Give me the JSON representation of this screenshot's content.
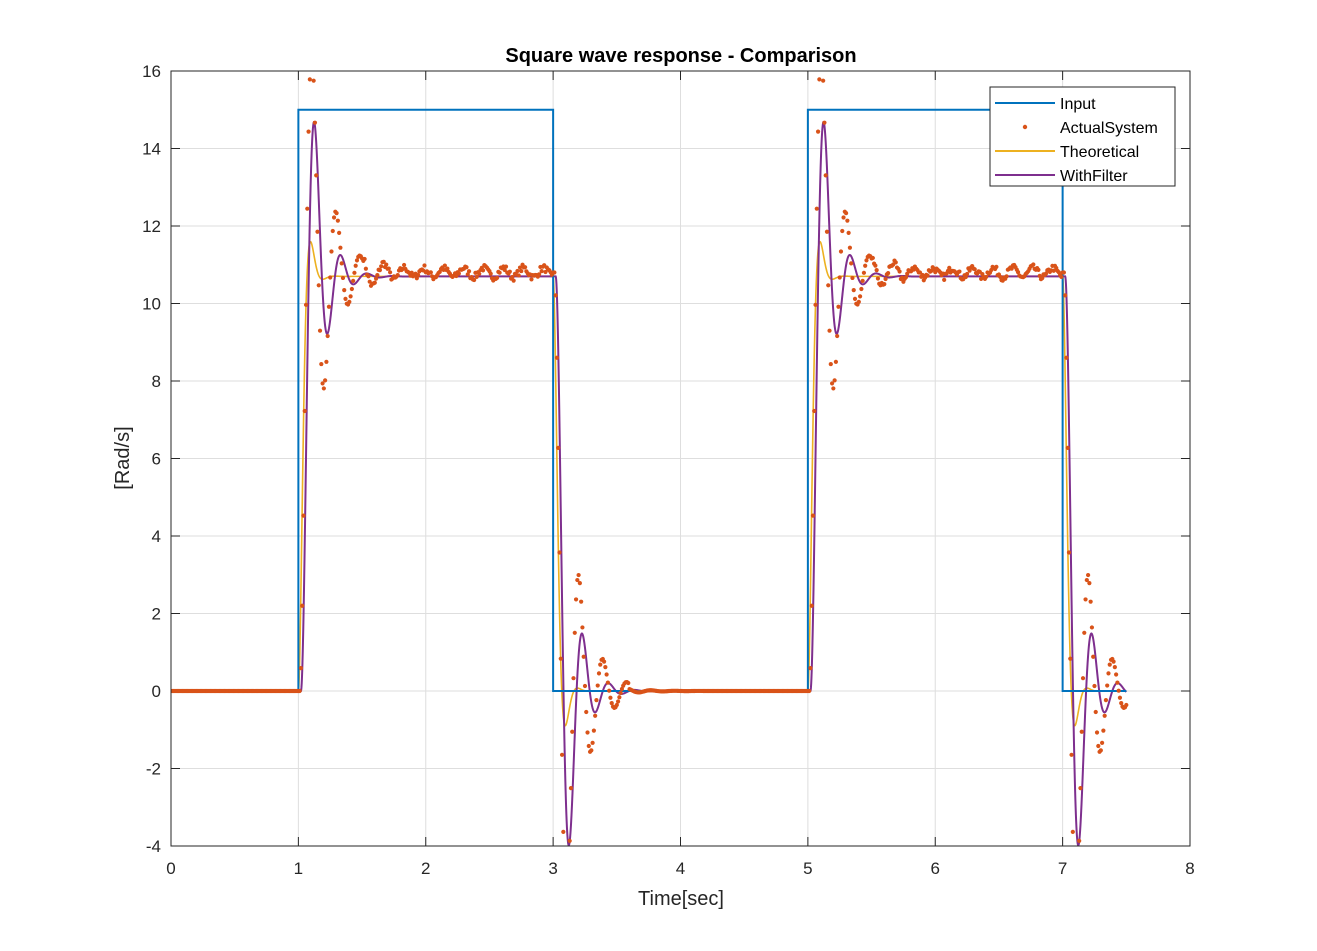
{
  "chart_data": {
    "type": "line",
    "title": "Square wave response - Comparison",
    "xlabel": "Time[sec]",
    "ylabel": "[Rad/s]",
    "xlim": [
      0,
      8
    ],
    "ylim": [
      -4,
      16
    ],
    "xticks": [
      0,
      1,
      2,
      3,
      4,
      5,
      6,
      7,
      8
    ],
    "yticks": [
      -4,
      -2,
      0,
      2,
      4,
      6,
      8,
      10,
      12,
      14,
      16
    ],
    "xtick_labels": [
      "0",
      "1",
      "2",
      "3",
      "4",
      "5",
      "6",
      "7",
      "8"
    ],
    "ytick_labels": [
      "-4",
      "-2",
      "0",
      "2",
      "4",
      "6",
      "8",
      "10",
      "12",
      "14",
      "16"
    ],
    "grid": true,
    "legend_position": "top-right",
    "square_wave": {
      "period": 4,
      "on_start": 1,
      "on_end": 3,
      "t_end": 7.5
    },
    "series": [
      {
        "name": "Input",
        "style": "line",
        "color": "#0072BD",
        "steady_high": 15,
        "steady_low": 0
      },
      {
        "name": "ActualSystem",
        "style": "dots",
        "color": "#D95319",
        "steady_high": 10.8,
        "peak_rise": 13.3,
        "trough_rise": 10.0,
        "trough_fall": -2.9,
        "peak_fall": 0.9
      },
      {
        "name": "Theoretical",
        "style": "line",
        "color": "#EDB120",
        "steady_high": 10.7,
        "peak_rise": 10.8
      },
      {
        "name": "WithFilter",
        "style": "line",
        "color": "#7E2F8E",
        "steady_high": 10.7,
        "peak_rise": 11.9,
        "trough_fall": -1.2
      }
    ]
  }
}
